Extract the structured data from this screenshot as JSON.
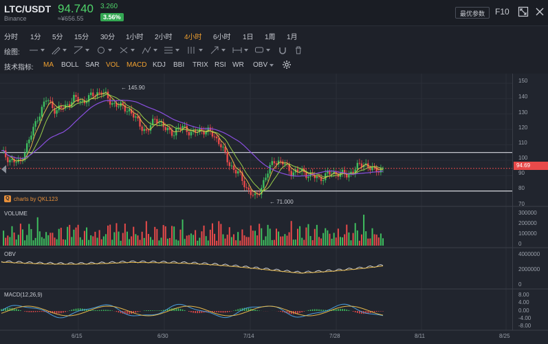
{
  "header": {
    "pair": "LTC/USDT",
    "exchange": "Binance",
    "price": "94.740",
    "cny_price": "≈¥656.55",
    "change_abs": "3.260",
    "change_pct": "3.56%",
    "optimize_label": "最优参数",
    "f10_label": "F10"
  },
  "intervals": [
    "分时",
    "1分",
    "5分",
    "15分",
    "30分",
    "1小时",
    "2小时",
    "4小时",
    "6小时",
    "1日",
    "1周",
    "1月"
  ],
  "active_interval": "4小时",
  "drawing": {
    "label": "绘图:"
  },
  "indicators": {
    "label": "技术指标:",
    "items": [
      "MA",
      "BOLL",
      "SAR",
      "VOL",
      "MACD",
      "KDJ",
      "BBI",
      "TRIX",
      "RSI",
      "WR",
      "OBV"
    ],
    "active": [
      "MA",
      "VOL",
      "MACD"
    ]
  },
  "colors": {
    "up": "#3fbf5f",
    "down": "#e84a4a",
    "ma_purple": "#8a4fe0",
    "ma_orange": "#e6b84a",
    "ma_green": "#9ad04a",
    "accent": "#f0a030"
  },
  "annotations": {
    "high": "145.90",
    "low": "71.000",
    "credit": "charts by QKL123",
    "last_price_tag": "94.69"
  },
  "panels": {
    "volume": "VOLUME",
    "obv": "OBV",
    "macd": "MACD(12,26,9)"
  },
  "chart_data": {
    "type": "line",
    "title": "LTC/USDT 4小时",
    "x_ticks": [
      "6/15",
      "6/30",
      "7/14",
      "7/28",
      "8/11",
      "8/25"
    ],
    "price_axis": {
      "ticks": [
        "150",
        "140",
        "130",
        "120",
        "110",
        "100",
        "90",
        "80",
        "70"
      ],
      "ylim": [
        70,
        150
      ]
    },
    "volume_axis": {
      "ticks": [
        "300000",
        "200000",
        "100000",
        "0"
      ]
    },
    "obv_axis": {
      "ticks": [
        "4000000",
        "2000000",
        "0"
      ]
    },
    "macd_axis": {
      "ticks": [
        "8.00",
        "4.00",
        "0.00",
        "-4.00",
        "-8.00"
      ]
    },
    "close_series": [
      105,
      100,
      98,
      112,
      128,
      140,
      132,
      135,
      140,
      138,
      142,
      145,
      138,
      135,
      133,
      125,
      118,
      128,
      120,
      118,
      122,
      117,
      120,
      118,
      112,
      98,
      92,
      82,
      75,
      88,
      100,
      98,
      92,
      93,
      90,
      88,
      91,
      92,
      90,
      95,
      98,
      93,
      94.7
    ],
    "horizontal_levels": [
      105,
      80,
      94.7
    ]
  }
}
